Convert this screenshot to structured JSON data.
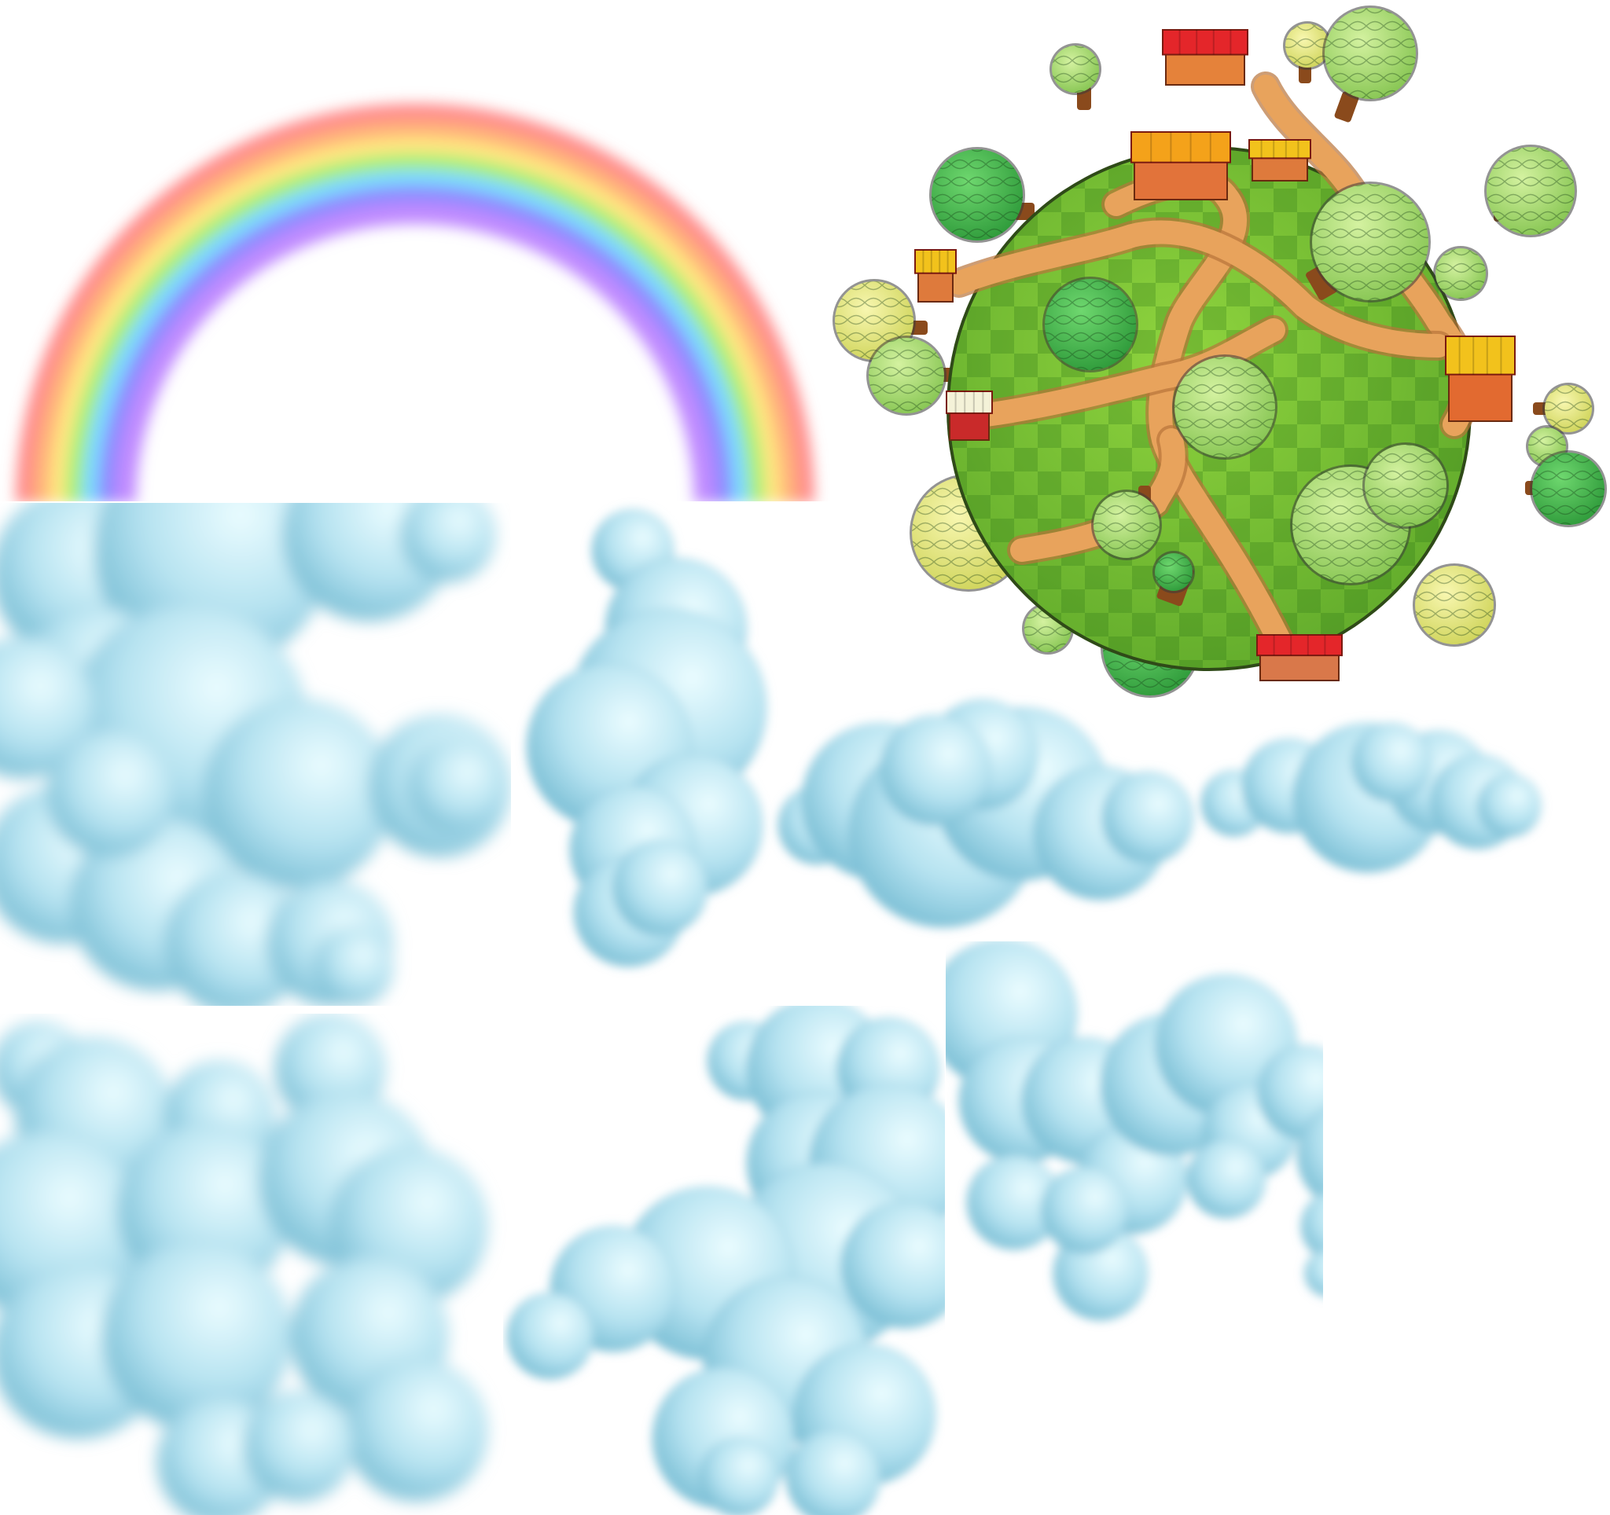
{
  "sheet": {
    "kind": "sprite-atlas",
    "background_color": "#ffffff"
  },
  "sprites": {
    "rainbow": {
      "icon": "rainbow-icon",
      "bands": [
        "#ff8a8a",
        "#ffb27a",
        "#ffe680",
        "#a8f07a",
        "#7ad8ff",
        "#8f8aff",
        "#c08aff"
      ]
    },
    "planet": {
      "icon": "planet-icon",
      "grass_color": "#7ac432",
      "path_color": "#e8a35c",
      "roof_colors": [
        "#e4262a",
        "#f4a21a",
        "#f2c21c"
      ],
      "tree_colors": [
        "#3fb548",
        "#a8d96a",
        "#e6ec7a"
      ]
    },
    "clouds": {
      "icon": "cloud-icon",
      "count": 7,
      "color_light": "#e9fbff",
      "color_mid": "#a9dcec",
      "color_dark": "#6eb7cf"
    }
  }
}
